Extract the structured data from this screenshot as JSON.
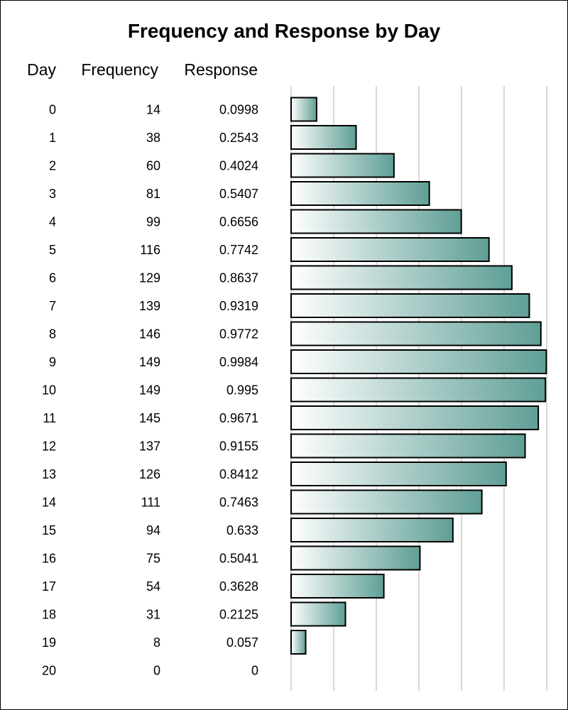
{
  "chart_data": {
    "type": "bar",
    "orientation": "horizontal",
    "title": "Frequency and Response by Day",
    "columns": [
      "Day",
      "Frequency",
      "Response"
    ],
    "rows": [
      {
        "day": "0",
        "frequency": "14",
        "response": "0.0998",
        "value": 0.0998
      },
      {
        "day": "1",
        "frequency": "38",
        "response": "0.2543",
        "value": 0.2543
      },
      {
        "day": "2",
        "frequency": "60",
        "response": "0.4024",
        "value": 0.4024
      },
      {
        "day": "3",
        "frequency": "81",
        "response": "0.5407",
        "value": 0.5407
      },
      {
        "day": "4",
        "frequency": "99",
        "response": "0.6656",
        "value": 0.6656
      },
      {
        "day": "5",
        "frequency": "116",
        "response": "0.7742",
        "value": 0.7742
      },
      {
        "day": "6",
        "frequency": "129",
        "response": "0.8637",
        "value": 0.8637
      },
      {
        "day": "7",
        "frequency": "139",
        "response": "0.9319",
        "value": 0.9319
      },
      {
        "day": "8",
        "frequency": "146",
        "response": "0.9772",
        "value": 0.9772
      },
      {
        "day": "9",
        "frequency": "149",
        "response": "0.9984",
        "value": 0.9984
      },
      {
        "day": "10",
        "frequency": "149",
        "response": "0.995",
        "value": 0.995
      },
      {
        "day": "11",
        "frequency": "145",
        "response": "0.9671",
        "value": 0.9671
      },
      {
        "day": "12",
        "frequency": "137",
        "response": "0.9155",
        "value": 0.9155
      },
      {
        "day": "13",
        "frequency": "126",
        "response": "0.8412",
        "value": 0.8412
      },
      {
        "day": "14",
        "frequency": "111",
        "response": "0.7463",
        "value": 0.7463
      },
      {
        "day": "15",
        "frequency": "94",
        "response": "0.633",
        "value": 0.633
      },
      {
        "day": "16",
        "frequency": "75",
        "response": "0.5041",
        "value": 0.5041
      },
      {
        "day": "17",
        "frequency": "54",
        "response": "0.3628",
        "value": 0.3628
      },
      {
        "day": "18",
        "frequency": "31",
        "response": "0.2125",
        "value": 0.2125
      },
      {
        "day": "19",
        "frequency": "8",
        "response": "0.057",
        "value": 0.057
      },
      {
        "day": "20",
        "frequency": "0",
        "response": "0",
        "value": 0
      }
    ],
    "xlim": [
      0,
      1.0
    ],
    "grid_values": [
      0,
      0.1667,
      0.3333,
      0.5,
      0.6667,
      0.8333,
      1.0
    ],
    "grid": true,
    "xlabel": "",
    "ylabel": ""
  },
  "colors": {
    "bar_start": "#ffffff",
    "bar_end": "#5f9f96",
    "grid": "#d9d9d9",
    "text": "#000000",
    "border": "#000000"
  }
}
